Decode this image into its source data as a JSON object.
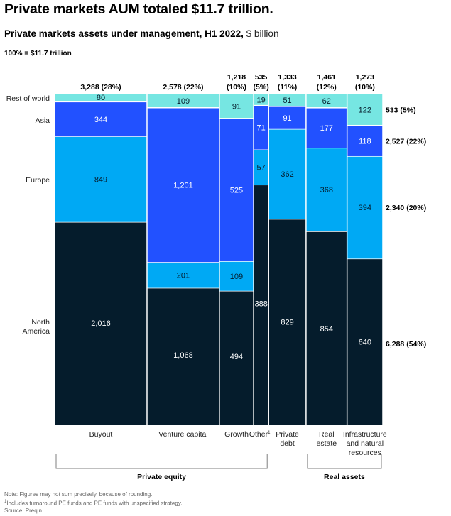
{
  "header": {
    "title": "Private markets AUM totaled $11.7 trillion.",
    "subtitle_bold": "Private markets assets under management, H1 2022,",
    "subtitle_unit": " $ billion",
    "total_label": "100% = $11.7 trillion"
  },
  "chart_data": {
    "type": "marimekko",
    "title": "Private markets assets under management, H1 2022",
    "unit": "$ billion",
    "total": "100% = $11.7 trillion",
    "regions": [
      "North America",
      "Europe",
      "Asia",
      "Rest of world"
    ],
    "region_labels": [
      {
        "name": "Rest of world",
        "lines": [
          "Rest of world"
        ]
      },
      {
        "name": "Asia",
        "lines": [
          "Asia"
        ]
      },
      {
        "name": "Europe",
        "lines": [
          "Europe"
        ]
      },
      {
        "name": "North America",
        "lines": [
          "North",
          "America"
        ]
      }
    ],
    "colors": {
      "North America": "#051c2c",
      "Europe": "#00a9f4",
      "Asia": "#2251ff",
      "Rest of world": "#76e6e2",
      "separator": "#d6e2ea",
      "bracket": "#7f7f7f"
    },
    "categories": [
      {
        "name": "Buyout",
        "label_lines": [
          "Buyout"
        ],
        "total": "3,288",
        "share": "(28%)",
        "total_value": 3288,
        "values": {
          "North America": 2016,
          "Europe": 849,
          "Asia": 344,
          "Rest of world": 80
        }
      },
      {
        "name": "Venture capital",
        "label_lines": [
          "Venture capital"
        ],
        "total": "2,578",
        "share": "(22%)",
        "total_value": 2578,
        "values": {
          "North America": 1068,
          "Europe": 201,
          "Asia": 1201,
          "Rest of world": 109
        }
      },
      {
        "name": "Growth",
        "label_lines": [
          "Growth"
        ],
        "total": "1,218",
        "share": "(10%)",
        "total_value": 1218,
        "values": {
          "North America": 494,
          "Europe": 109,
          "Asia": 525,
          "Rest of world": 91
        }
      },
      {
        "name": "Other",
        "label_lines": [
          "Other"
        ],
        "footnote": "1",
        "total": "535",
        "share": "(5%)",
        "total_value": 535,
        "values": {
          "North America": 388,
          "Europe": 57,
          "Asia": 71,
          "Rest of world": 19
        }
      },
      {
        "name": "Private debt",
        "label_lines": [
          "Private",
          "debt"
        ],
        "total": "1,333",
        "share": "(11%)",
        "total_value": 1333,
        "values": {
          "North America": 829,
          "Europe": 362,
          "Asia": 91,
          "Rest of world": 51
        }
      },
      {
        "name": "Real estate",
        "label_lines": [
          "Real",
          "estate"
        ],
        "total": "1,461",
        "share": "(12%)",
        "total_value": 1461,
        "values": {
          "North America": 854,
          "Europe": 368,
          "Asia": 177,
          "Rest of world": 62
        }
      },
      {
        "name": "Infrastructure and natural resources",
        "label_lines": [
          "Infrastructure",
          "and natural",
          "resources"
        ],
        "total": "1,273",
        "share": "(10%)",
        "total_value": 1273,
        "values": {
          "North America": 640,
          "Europe": 394,
          "Asia": 118,
          "Rest of world": 122
        }
      }
    ],
    "region_totals": [
      {
        "region": "Rest of world",
        "label": "533 (5%)"
      },
      {
        "region": "Asia",
        "label": "2,527 (22%)"
      },
      {
        "region": "Europe",
        "label": "2,340 (20%)"
      },
      {
        "region": "North America",
        "label": "6,288 (54%)"
      }
    ],
    "groups": [
      {
        "name": "Private equity",
        "from": 0,
        "to": 3
      },
      {
        "name": "Real assets",
        "from": 5,
        "to": 6
      }
    ]
  },
  "notes": {
    "note": "Note: Figures may not sum precisely, because of rounding.",
    "footnote_mark": "1",
    "footnote": "Includes turnaround PE funds and PE funds with unspecified strategy.",
    "source": "Source: Preqin"
  }
}
